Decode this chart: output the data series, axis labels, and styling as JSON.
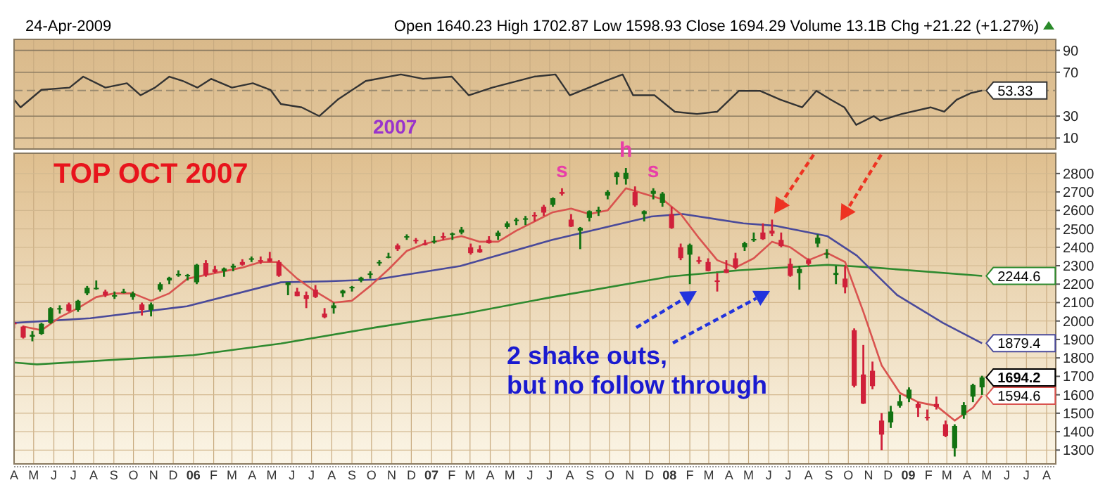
{
  "chart_data": [
    {
      "type": "line",
      "subtitle": "Open 1640.23 High 1702.87 Low 1598.93 Close 1694.29 Volume 13.1B Chg +21.22 (+1.27%)",
      "annotations": [
        "24-Apr-2009",
        "2007"
      ],
      "xlim": [
        "2005-04-01",
        "2009-08-15"
      ],
      "xticks": [
        {
          "value": "2005-04",
          "label": null
        },
        {
          "value": "2005-05",
          "label": null
        },
        {
          "value": "2005-06",
          "label": null
        },
        {
          "value": "2005-07",
          "label": null
        },
        {
          "value": "2005-08",
          "label": null
        },
        {
          "value": "2005-09",
          "label": null
        },
        {
          "value": "2005-10",
          "label": null
        },
        {
          "value": "2005-11",
          "label": null
        },
        {
          "value": "2005-12",
          "label": null
        },
        {
          "value": "2006-01",
          "label": null
        },
        {
          "value": "2006-02",
          "label": null
        },
        {
          "value": "2006-03",
          "label": null
        },
        {
          "value": "2006-04",
          "label": null
        },
        {
          "value": "2006-05",
          "label": null
        },
        {
          "value": "2006-06",
          "label": null
        },
        {
          "value": "2006-07",
          "label": null
        },
        {
          "value": "2006-08",
          "label": null
        },
        {
          "value": "2006-09",
          "label": null
        },
        {
          "value": "2006-10",
          "label": null
        },
        {
          "value": "2006-11",
          "label": null
        },
        {
          "value": "2006-12",
          "label": null
        },
        {
          "value": "2007-01",
          "label": null
        },
        {
          "value": "2007-02",
          "label": null
        },
        {
          "value": "2007-03",
          "label": null
        },
        {
          "value": "2007-04",
          "label": null
        },
        {
          "value": "2007-05",
          "label": null
        },
        {
          "value": "2007-06",
          "label": null
        },
        {
          "value": "2007-07",
          "label": null
        },
        {
          "value": "2007-08",
          "label": null
        },
        {
          "value": "2007-09",
          "label": null
        },
        {
          "value": "2007-10",
          "label": null
        },
        {
          "value": "2007-11",
          "label": null
        },
        {
          "value": "2007-12",
          "label": null
        },
        {
          "value": "2008-01",
          "label": null
        },
        {
          "value": "2008-02",
          "label": null
        },
        {
          "value": "2008-03",
          "label": null
        },
        {
          "value": "2008-04",
          "label": null
        },
        {
          "value": "2008-05",
          "label": null
        },
        {
          "value": "2008-06",
          "label": null
        },
        {
          "value": "2008-07",
          "label": null
        },
        {
          "value": "2008-08",
          "label": null
        },
        {
          "value": "2008-09",
          "label": null
        },
        {
          "value": "2008-10",
          "label": null
        },
        {
          "value": "2008-11",
          "label": null
        },
        {
          "value": "2008-12",
          "label": null
        },
        {
          "value": "2009-01",
          "label": null
        },
        {
          "value": "2009-02",
          "label": null
        },
        {
          "value": "2009-03",
          "label": null
        },
        {
          "value": "2009-04",
          "label": null
        },
        {
          "value": "2009-05",
          "label": null
        },
        {
          "value": "2009-06",
          "label": null
        },
        {
          "value": "2009-07",
          "label": null
        },
        {
          "value": "2009-08",
          "label": null
        }
      ],
      "ylim": [
        0,
        100
      ],
      "yticks": [
        10,
        30,
        70,
        90
      ],
      "grid": true,
      "tick_labels": "y",
      "ref_lines": [
        {
          "axis": "y",
          "value": 53.33,
          "label": null,
          "color": "#9a8a70",
          "line_style": "dashed"
        }
      ],
      "series": [
        {
          "type": "line",
          "color": "#333333",
          "x": [
            "2005-04-01",
            "2005-04-11",
            "2005-05-13",
            "2005-06-25",
            "2005-07-16",
            "2005-08-19",
            "2005-09-21",
            "2005-10-12",
            "2005-11-03",
            "2005-11-25",
            "2005-12-16",
            "2006-01-07",
            "2006-01-28",
            "2006-03-01",
            "2006-04-02",
            "2006-04-29",
            "2006-05-15",
            "2006-06-16",
            "2006-07-13",
            "2006-08-10",
            "2006-09-22",
            "2006-11-15",
            "2006-12-19",
            "2007-02-01",
            "2007-02-27",
            "2007-04-04",
            "2007-06-07",
            "2007-07-10",
            "2007-08-01",
            "2007-09-24",
            "2007-10-21",
            "2007-11-06",
            "2007-12-09",
            "2008-01-09",
            "2008-02-12",
            "2008-03-14",
            "2008-04-16",
            "2008-05-19",
            "2008-06-19",
            "2008-07-22",
            "2008-08-13",
            "2008-09-04",
            "2008-09-25",
            "2008-10-13",
            "2008-11-09",
            "2008-11-19",
            "2008-12-22",
            "2009-02-04",
            "2009-02-25",
            "2009-03-16",
            "2009-04-07",
            "2009-04-24"
          ],
          "values": [
            45,
            38,
            54,
            56,
            66,
            56,
            60,
            49,
            56,
            66,
            62,
            56,
            64,
            56,
            60,
            54,
            41,
            38,
            30,
            45,
            62,
            68,
            64,
            66,
            49,
            56,
            66,
            68,
            49,
            62,
            68,
            49,
            49,
            34,
            32,
            34,
            53,
            53,
            45,
            38,
            53,
            45,
            38,
            22,
            30,
            26,
            32,
            38,
            34,
            45,
            51,
            53.33
          ],
          "value_labels": [
            null,
            null,
            null,
            null,
            null,
            null,
            null,
            null,
            null,
            null,
            null,
            null,
            null,
            null,
            null,
            null,
            null,
            null,
            null,
            null,
            null,
            null,
            null,
            null,
            null,
            null,
            null,
            null,
            null,
            null,
            null,
            null,
            null,
            null,
            null,
            null,
            null,
            null,
            null,
            null,
            null,
            null,
            null,
            null,
            null,
            null,
            null,
            null,
            null,
            null,
            null,
            "53.33"
          ]
        }
      ]
    },
    {
      "type": "candlestick",
      "annotations": [
        "TOP OCT 2007",
        {
          "text": "s",
          "x": "2007-07-20",
          "y": 2720
        },
        {
          "text": "h",
          "x": "2007-10-26",
          "y": 2830
        },
        {
          "text": "s",
          "x": "2007-12-07",
          "y": 2720
        },
        "2 shake outs,\nbut no follow through"
      ],
      "xlim": [
        "2005-04-01",
        "2009-08-15"
      ],
      "xticks": [
        {
          "value": "2005-04",
          "label": "A"
        },
        {
          "value": "2005-05",
          "label": "M"
        },
        {
          "value": "2005-06",
          "label": "J"
        },
        {
          "value": "2005-07",
          "label": "J"
        },
        {
          "value": "2005-08",
          "label": "A"
        },
        {
          "value": "2005-09",
          "label": "S"
        },
        {
          "value": "2005-10",
          "label": "O"
        },
        {
          "value": "2005-11",
          "label": "N"
        },
        {
          "value": "2005-12",
          "label": "D"
        },
        {
          "value": "2006-01",
          "label": "06"
        },
        {
          "value": "2006-02",
          "label": "F"
        },
        {
          "value": "2006-03",
          "label": "M"
        },
        {
          "value": "2006-04",
          "label": "A"
        },
        {
          "value": "2006-05",
          "label": "M"
        },
        {
          "value": "2006-06",
          "label": "J"
        },
        {
          "value": "2006-07",
          "label": "J"
        },
        {
          "value": "2006-08",
          "label": "A"
        },
        {
          "value": "2006-09",
          "label": "S"
        },
        {
          "value": "2006-10",
          "label": "O"
        },
        {
          "value": "2006-11",
          "label": "N"
        },
        {
          "value": "2006-12",
          "label": "D"
        },
        {
          "value": "2007-01",
          "label": "07"
        },
        {
          "value": "2007-02",
          "label": "F"
        },
        {
          "value": "2007-03",
          "label": "M"
        },
        {
          "value": "2007-04",
          "label": "A"
        },
        {
          "value": "2007-05",
          "label": "M"
        },
        {
          "value": "2007-06",
          "label": "J"
        },
        {
          "value": "2007-07",
          "label": "J"
        },
        {
          "value": "2007-08",
          "label": "A"
        },
        {
          "value": "2007-09",
          "label": "S"
        },
        {
          "value": "2007-10",
          "label": "O"
        },
        {
          "value": "2007-11",
          "label": "N"
        },
        {
          "value": "2007-12",
          "label": "D"
        },
        {
          "value": "2008-01",
          "label": "08"
        },
        {
          "value": "2008-02",
          "label": "F"
        },
        {
          "value": "2008-03",
          "label": "M"
        },
        {
          "value": "2008-04",
          "label": "A"
        },
        {
          "value": "2008-05",
          "label": "M"
        },
        {
          "value": "2008-06",
          "label": "J"
        },
        {
          "value": "2008-07",
          "label": "J"
        },
        {
          "value": "2008-08",
          "label": "A"
        },
        {
          "value": "2008-09",
          "label": "S"
        },
        {
          "value": "2008-10",
          "label": "O"
        },
        {
          "value": "2008-11",
          "label": "N"
        },
        {
          "value": "2008-12",
          "label": "D"
        },
        {
          "value": "2009-01",
          "label": "09"
        },
        {
          "value": "2009-02",
          "label": "F"
        },
        {
          "value": "2009-03",
          "label": "M"
        },
        {
          "value": "2009-04",
          "label": "A"
        },
        {
          "value": "2009-05",
          "label": "M"
        },
        {
          "value": "2009-06",
          "label": "J"
        },
        {
          "value": "2009-07",
          "label": "J"
        },
        {
          "value": "2009-08",
          "label": "A"
        }
      ],
      "ylim": [
        1225,
        2910
      ],
      "yticks": [
        1300,
        1400,
        1500,
        1600,
        1700,
        1800,
        1900,
        2000,
        2100,
        2200,
        2300,
        2400,
        2500,
        2600,
        2700,
        2800
      ],
      "grid": true,
      "x": [
        "2005-04-01",
        "2005-04-15",
        "2005-04-29",
        "2005-05-13",
        "2005-05-27",
        "2005-06-10",
        "2005-06-24",
        "2005-07-08",
        "2005-07-22",
        "2005-08-05",
        "2005-08-19",
        "2005-09-02",
        "2005-09-16",
        "2005-09-30",
        "2005-10-14",
        "2005-10-28",
        "2005-11-11",
        "2005-11-25",
        "2005-12-09",
        "2005-12-23",
        "2006-01-06",
        "2006-01-20",
        "2006-02-03",
        "2006-02-17",
        "2006-03-03",
        "2006-03-17",
        "2006-03-31",
        "2006-04-14",
        "2006-04-28",
        "2006-05-12",
        "2006-05-26",
        "2006-06-09",
        "2006-06-23",
        "2006-07-07",
        "2006-07-21",
        "2006-08-04",
        "2006-08-18",
        "2006-09-01",
        "2006-09-15",
        "2006-09-29",
        "2006-10-13",
        "2006-10-27",
        "2006-11-10",
        "2006-11-24",
        "2006-12-08",
        "2006-12-22",
        "2007-01-05",
        "2007-01-19",
        "2007-02-02",
        "2007-02-16",
        "2007-03-02",
        "2007-03-16",
        "2007-03-30",
        "2007-04-13",
        "2007-04-27",
        "2007-05-11",
        "2007-05-25",
        "2007-06-08",
        "2007-06-22",
        "2007-07-06",
        "2007-07-20",
        "2007-08-03",
        "2007-08-17",
        "2007-08-31",
        "2007-09-14",
        "2007-09-28",
        "2007-10-12",
        "2007-10-26",
        "2007-11-09",
        "2007-11-23",
        "2007-12-07",
        "2007-12-21",
        "2008-01-04",
        "2008-01-18",
        "2008-02-01",
        "2008-02-15",
        "2008-02-29",
        "2008-03-14",
        "2008-03-28",
        "2008-04-11",
        "2008-04-25",
        "2008-05-09",
        "2008-05-23",
        "2008-06-06",
        "2008-06-20",
        "2008-07-04",
        "2008-07-18",
        "2008-08-01",
        "2008-08-15",
        "2008-08-29",
        "2008-09-12",
        "2008-09-26",
        "2008-10-10",
        "2008-10-24",
        "2008-11-07",
        "2008-11-21",
        "2008-12-05",
        "2008-12-19",
        "2009-01-02",
        "2009-01-16",
        "2009-01-30",
        "2009-02-13",
        "2009-02-27",
        "2009-03-13",
        "2009-03-27",
        "2009-04-10",
        "2009-04-24"
      ],
      "ohlc": [
        [
          1990,
          2000,
          1960,
          1985
        ],
        [
          1970,
          1975,
          1905,
          1910
        ],
        [
          1915,
          1945,
          1890,
          1925
        ],
        [
          1930,
          1990,
          1925,
          1985
        ],
        [
          1990,
          2075,
          1985,
          2070
        ],
        [
          2065,
          2085,
          2040,
          2070
        ],
        [
          2090,
          2100,
          2050,
          2055
        ],
        [
          2060,
          2115,
          2050,
          2110
        ],
        [
          2150,
          2190,
          2140,
          2180
        ],
        [
          2180,
          2220,
          2170,
          2180
        ],
        [
          2160,
          2170,
          2130,
          2140
        ],
        [
          2140,
          2160,
          2120,
          2140
        ],
        [
          2160,
          2175,
          2150,
          2160
        ],
        [
          2130,
          2160,
          2115,
          2150
        ],
        [
          2090,
          2100,
          2030,
          2060
        ],
        [
          2060,
          2100,
          2025,
          2090
        ],
        [
          2170,
          2210,
          2160,
          2200
        ],
        [
          2220,
          2240,
          2200,
          2235
        ],
        [
          2250,
          2275,
          2240,
          2255
        ],
        [
          2245,
          2255,
          2220,
          2250
        ],
        [
          2210,
          2310,
          2200,
          2305
        ],
        [
          2315,
          2330,
          2240,
          2250
        ],
        [
          2280,
          2300,
          2260,
          2265
        ],
        [
          2270,
          2290,
          2240,
          2285
        ],
        [
          2290,
          2310,
          2270,
          2300
        ],
        [
          2320,
          2335,
          2300,
          2305
        ],
        [
          2340,
          2350,
          2320,
          2340
        ],
        [
          2330,
          2350,
          2310,
          2325
        ],
        [
          2340,
          2375,
          2320,
          2322
        ],
        [
          2320,
          2330,
          2240,
          2245
        ],
        [
          2195,
          2210,
          2140,
          2210
        ],
        [
          2160,
          2180,
          2135,
          2135
        ],
        [
          2140,
          2160,
          2070,
          2120
        ],
        [
          2170,
          2195,
          2125,
          2130
        ],
        [
          2040,
          2070,
          2015,
          2020
        ],
        [
          2070,
          2100,
          2040,
          2085
        ],
        [
          2150,
          2170,
          2130,
          2165
        ],
        [
          2180,
          2190,
          2160,
          2185
        ],
        [
          2220,
          2240,
          2210,
          2235
        ],
        [
          2250,
          2270,
          2230,
          2258
        ],
        [
          2320,
          2330,
          2300,
          2320
        ],
        [
          2350,
          2370,
          2340,
          2350
        ],
        [
          2410,
          2420,
          2380,
          2390
        ],
        [
          2460,
          2470,
          2440,
          2460
        ],
        [
          2440,
          2450,
          2420,
          2437
        ],
        [
          2420,
          2440,
          2410,
          2415
        ],
        [
          2435,
          2460,
          2420,
          2435
        ],
        [
          2460,
          2480,
          2440,
          2451
        ],
        [
          2470,
          2480,
          2440,
          2475
        ],
        [
          2480,
          2510,
          2470,
          2496
        ],
        [
          2400,
          2420,
          2360,
          2368
        ],
        [
          2390,
          2410,
          2370,
          2372
        ],
        [
          2440,
          2460,
          2420,
          2422
        ],
        [
          2460,
          2490,
          2440,
          2480
        ],
        [
          2510,
          2540,
          2500,
          2530
        ],
        [
          2550,
          2560,
          2520,
          2550
        ],
        [
          2550,
          2570,
          2520,
          2557
        ],
        [
          2575,
          2590,
          2540,
          2573
        ],
        [
          2620,
          2630,
          2570,
          2588
        ],
        [
          2630,
          2670,
          2620,
          2666
        ],
        [
          2700,
          2720,
          2680,
          2690
        ],
        [
          2550,
          2580,
          2510,
          2512
        ],
        [
          2490,
          2510,
          2390,
          2505
        ],
        [
          2560,
          2600,
          2540,
          2596
        ],
        [
          2600,
          2620,
          2570,
          2602
        ],
        [
          2680,
          2710,
          2660,
          2701
        ],
        [
          2780,
          2810,
          2740,
          2805
        ],
        [
          2770,
          2830,
          2740,
          2804
        ],
        [
          2700,
          2730,
          2620,
          2627
        ],
        [
          2580,
          2600,
          2540,
          2596
        ],
        [
          2690,
          2720,
          2660,
          2706
        ],
        [
          2640,
          2700,
          2620,
          2691
        ],
        [
          2580,
          2620,
          2500,
          2504
        ],
        [
          2400,
          2420,
          2330,
          2341
        ],
        [
          2360,
          2420,
          2200,
          2413
        ],
        [
          2330,
          2350,
          2310,
          2321
        ],
        [
          2320,
          2340,
          2270,
          2271
        ],
        [
          2220,
          2260,
          2160,
          2212
        ],
        [
          2280,
          2330,
          2260,
          2261
        ],
        [
          2340,
          2370,
          2280,
          2290
        ],
        [
          2400,
          2430,
          2380,
          2422
        ],
        [
          2440,
          2480,
          2430,
          2445
        ],
        [
          2480,
          2530,
          2440,
          2444
        ],
        [
          2490,
          2550,
          2460,
          2474
        ],
        [
          2440,
          2480,
          2400,
          2406
        ],
        [
          2310,
          2340,
          2240,
          2245
        ],
        [
          2260,
          2300,
          2170,
          2282
        ],
        [
          2330,
          2340,
          2300,
          2310
        ],
        [
          2420,
          2470,
          2400,
          2452
        ],
        [
          2360,
          2390,
          2340,
          2367
        ],
        [
          2250,
          2300,
          2200,
          2261
        ],
        [
          2230,
          2300,
          2150,
          2183
        ],
        [
          1950,
          1960,
          1640,
          1649
        ],
        [
          1710,
          1870,
          1550,
          1552
        ],
        [
          1730,
          1780,
          1630,
          1647
        ],
        [
          1460,
          1500,
          1300,
          1384
        ],
        [
          1450,
          1540,
          1420,
          1509
        ],
        [
          1540,
          1600,
          1530,
          1565
        ],
        [
          1580,
          1640,
          1560,
          1628
        ],
        [
          1550,
          1560,
          1480,
          1529
        ],
        [
          1480,
          1520,
          1460,
          1476
        ],
        [
          1550,
          1590,
          1520,
          1534
        ],
        [
          1440,
          1460,
          1370,
          1377
        ],
        [
          1310,
          1440,
          1265,
          1431
        ],
        [
          1490,
          1560,
          1470,
          1545
        ],
        [
          1590,
          1660,
          1560,
          1653
        ],
        [
          1640.23,
          1702.87,
          1598.93,
          1694.29
        ]
      ],
      "value_labels": [
        null,
        null,
        null,
        null,
        null,
        null,
        null,
        null,
        null,
        null,
        null,
        null,
        null,
        null,
        null,
        null,
        null,
        null,
        null,
        null,
        null,
        null,
        null,
        null,
        null,
        null,
        null,
        null,
        null,
        null,
        null,
        null,
        null,
        null,
        null,
        null,
        null,
        null,
        null,
        null,
        null,
        null,
        null,
        null,
        null,
        null,
        null,
        null,
        null,
        null,
        null,
        null,
        null,
        null,
        null,
        null,
        null,
        null,
        null,
        null,
        null,
        null,
        null,
        null,
        null,
        null,
        null,
        null,
        null,
        null,
        null,
        null,
        null,
        null,
        null,
        null,
        null,
        null,
        null,
        null,
        null,
        null,
        null,
        null,
        null,
        null,
        null,
        null,
        null,
        null,
        null,
        null,
        null,
        null,
        null,
        null,
        null,
        null,
        null,
        null,
        null,
        null,
        null,
        null,
        null,
        null,
        "1694.2"
      ],
      "series": [
        {
          "type": "line",
          "color": "#2f8a2f",
          "x": [
            "2005-04-01",
            "2005-05-06",
            "2006-01-01",
            "2006-05-15",
            "2006-10-07",
            "2007-02-20",
            "2007-07-05",
            "2008-01-03",
            "2008-04-17",
            "2008-08-30",
            "2008-11-09",
            "2009-04-24"
          ],
          "values": [
            1775,
            1765,
            1815,
            1878,
            1965,
            2040,
            2130,
            2242,
            2275,
            2305,
            2290,
            2244.6
          ],
          "value_labels": [
            null,
            null,
            null,
            null,
            null,
            null,
            null,
            null,
            null,
            null,
            null,
            "2244.6"
          ]
        },
        {
          "type": "line",
          "color": "#4a4a9a",
          "x": [
            "2005-04-01",
            "2005-07-27",
            "2005-12-22",
            "2006-05-15",
            "2006-07-24",
            "2006-10-07",
            "2007-02-14",
            "2007-07-05",
            "2007-12-04",
            "2008-01-21",
            "2008-04-23",
            "2008-06-10",
            "2008-08-30",
            "2008-10-14",
            "2008-12-15",
            "2009-02-23",
            "2009-04-24"
          ],
          "values": [
            1990,
            2015,
            2080,
            2210,
            2215,
            2225,
            2298,
            2440,
            2567,
            2580,
            2530,
            2517,
            2460,
            2355,
            2140,
            1990,
            1879.4
          ],
          "value_labels": [
            null,
            null,
            null,
            null,
            null,
            null,
            null,
            null,
            null,
            null,
            null,
            null,
            null,
            null,
            null,
            null,
            "1879.4"
          ]
        },
        {
          "type": "line",
          "color": "#d9534f",
          "x": [
            "2005-04-15",
            "2005-05-13",
            "2005-06-10",
            "2005-07-08",
            "2005-08-05",
            "2005-09-02",
            "2005-09-30",
            "2005-10-28",
            "2005-11-25",
            "2005-12-23",
            "2006-01-20",
            "2006-02-17",
            "2006-03-17",
            "2006-04-14",
            "2006-05-12",
            "2006-06-09",
            "2006-07-07",
            "2006-08-04",
            "2006-09-01",
            "2006-09-29",
            "2006-10-27",
            "2006-11-24",
            "2006-12-22",
            "2007-01-19",
            "2007-02-16",
            "2007-03-16",
            "2007-04-13",
            "2007-05-11",
            "2007-06-08",
            "2007-07-06",
            "2007-08-03",
            "2007-08-31",
            "2007-09-28",
            "2007-10-26",
            "2007-11-23",
            "2007-12-21",
            "2008-01-18",
            "2008-02-15",
            "2008-03-14",
            "2008-04-11",
            "2008-05-09",
            "2008-06-06",
            "2008-07-04",
            "2008-08-01",
            "2008-08-29",
            "2008-09-26",
            "2008-10-24",
            "2008-11-21",
            "2008-12-19",
            "2009-01-16",
            "2009-02-13",
            "2009-03-13",
            "2009-04-10",
            "2009-04-24"
          ],
          "values": [
            1970,
            1950,
            2020,
            2070,
            2130,
            2150,
            2150,
            2110,
            2150,
            2230,
            2250,
            2270,
            2290,
            2320,
            2320,
            2230,
            2160,
            2100,
            2110,
            2190,
            2280,
            2380,
            2420,
            2440,
            2460,
            2430,
            2430,
            2490,
            2540,
            2590,
            2610,
            2580,
            2600,
            2720,
            2690,
            2660,
            2580,
            2450,
            2330,
            2290,
            2340,
            2430,
            2400,
            2330,
            2370,
            2320,
            2050,
            1760,
            1610,
            1560,
            1540,
            1460,
            1530,
            1594.6
          ],
          "value_labels": [
            null,
            null,
            null,
            null,
            null,
            null,
            null,
            null,
            null,
            null,
            null,
            null,
            null,
            null,
            null,
            null,
            null,
            null,
            null,
            null,
            null,
            null,
            null,
            null,
            null,
            null,
            null,
            null,
            null,
            null,
            null,
            null,
            null,
            null,
            null,
            null,
            null,
            null,
            null,
            null,
            null,
            null,
            null,
            null,
            null,
            null,
            null,
            null,
            null,
            null,
            null,
            null,
            null,
            "1594.6"
          ]
        }
      ]
    }
  ]
}
